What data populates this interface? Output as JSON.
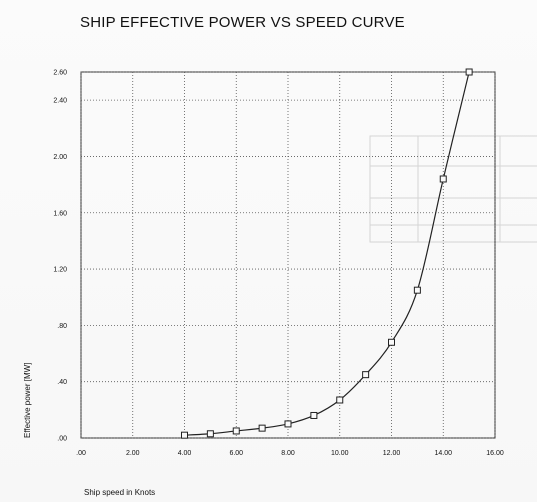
{
  "chart_data": {
    "type": "line",
    "title": "SHIP EFFECTIVE POWER VS SPEED CURVE",
    "xlabel": "Ship speed in Knots",
    "ylabel": "Effective power [MW]",
    "xlim": [
      0,
      16
    ],
    "ylim": [
      0,
      2.6
    ],
    "grid": true,
    "x_ticks": [
      ".00",
      "2.00",
      "4.00",
      "6.00",
      "8.00",
      "10.00",
      "12.00",
      "14.00",
      "16.00"
    ],
    "y_ticks": [
      ".00",
      ".40",
      ".80",
      "1.20",
      "1.60",
      "2.00",
      "2.40",
      "2.60"
    ],
    "series": [
      {
        "x": [
          4,
          5,
          6,
          7,
          8,
          9,
          10,
          11,
          12,
          13,
          14,
          15
        ],
        "values": [
          0.02,
          0.03,
          0.05,
          0.07,
          0.1,
          0.16,
          0.27,
          0.45,
          0.68,
          1.05,
          1.84,
          2.6
        ]
      }
    ]
  }
}
